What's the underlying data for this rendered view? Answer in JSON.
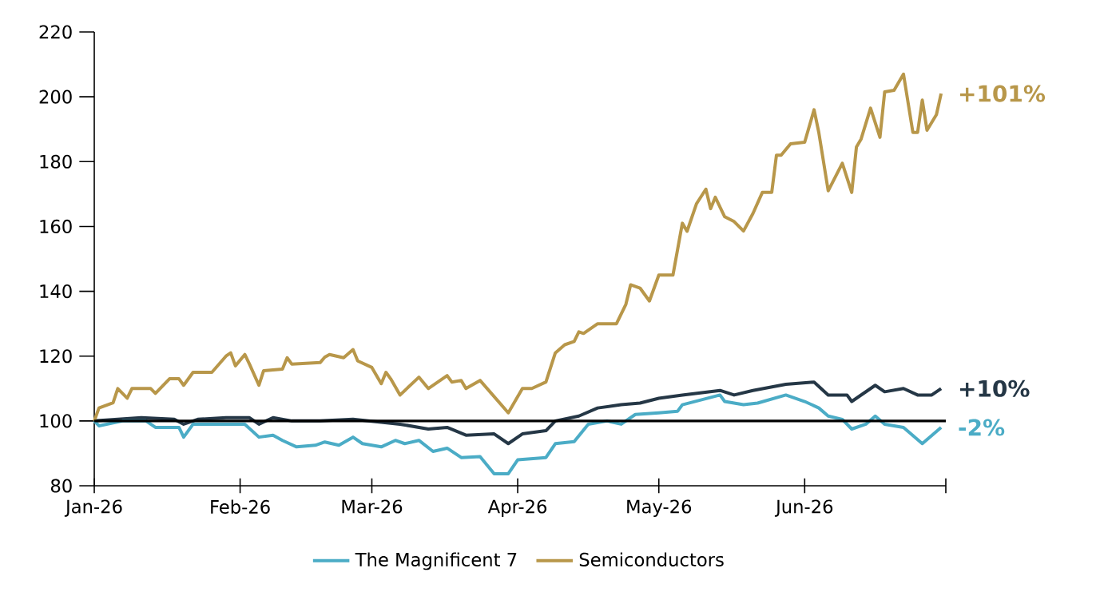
{
  "chart_data": {
    "type": "line",
    "xlim": [
      "2026-01-01",
      "2026-07-01"
    ],
    "xticks": [
      {
        "value": "2026-01-01",
        "label": "Jan-26"
      },
      {
        "value": "2026-02-01",
        "label": "Feb-26"
      },
      {
        "value": "2026-03-01",
        "label": "Mar-26"
      },
      {
        "value": "2026-04-01",
        "label": "Apr-26"
      },
      {
        "value": "2026-05-01",
        "label": "May-26"
      },
      {
        "value": "2026-06-01",
        "label": "Jun-26"
      },
      {
        "value": "2026-07-01",
        "label": null
      }
    ],
    "ylim": [
      80,
      220
    ],
    "yticks": [
      80,
      100,
      120,
      140,
      160,
      180,
      200,
      220
    ],
    "legend": "bottom",
    "ref_lines": [
      {
        "axis": "y",
        "value": 100,
        "color": "#000000"
      }
    ],
    "annotations": [
      {
        "text": "+101%",
        "x": "2026-06-30",
        "y": 201
      },
      {
        "text": "+10%",
        "x": "2026-06-30",
        "y": 110
      },
      {
        "text": "-2%",
        "x": "2026-06-30",
        "y": 98
      }
    ],
    "series": [
      {
        "color": "#253746",
        "x": [
          "2026-01-01",
          "2026-01-06",
          "2026-01-11",
          "2026-01-18",
          "2026-01-20",
          "2026-01-23",
          "2026-01-29",
          "2026-02-03",
          "2026-02-05",
          "2026-02-08",
          "2026-02-12",
          "2026-02-18",
          "2026-02-25",
          "2026-03-07",
          "2026-03-13",
          "2026-03-17",
          "2026-03-21",
          "2026-03-27",
          "2026-03-30",
          "2026-04-02",
          "2026-04-07",
          "2026-04-09",
          "2026-04-14",
          "2026-04-18",
          "2026-04-23",
          "2026-04-27",
          "2026-05-01",
          "2026-05-06",
          "2026-05-14",
          "2026-05-17",
          "2026-05-21",
          "2026-05-28",
          "2026-06-03",
          "2026-06-06",
          "2026-06-10",
          "2026-06-11",
          "2026-06-16",
          "2026-06-18",
          "2026-06-22",
          "2026-06-25",
          "2026-06-28",
          "2026-06-30"
        ],
        "values": [
          100,
          100.5,
          101,
          100.5,
          99,
          100.5,
          101,
          101,
          99,
          101,
          100,
          100,
          100.5,
          99,
          97.5,
          98,
          95.6,
          96,
          93,
          96,
          97,
          100,
          101.5,
          104,
          105,
          105.5,
          107,
          108,
          109.4,
          108,
          109.4,
          111.3,
          112,
          108,
          108,
          106,
          111,
          109,
          110,
          108,
          108,
          110
        ]
      },
      {
        "name": "The Magnificent 7",
        "color": "#4bacc6",
        "x": [
          "2026-01-01",
          "2026-01-02",
          "2026-01-07",
          "2026-01-12",
          "2026-01-14",
          "2026-01-19",
          "2026-01-20",
          "2026-01-22",
          "2026-01-31",
          "2026-02-02",
          "2026-02-05",
          "2026-02-08",
          "2026-02-10",
          "2026-02-13",
          "2026-02-17",
          "2026-02-19",
          "2026-02-22",
          "2026-02-25",
          "2026-02-27",
          "2026-03-03",
          "2026-03-06",
          "2026-03-08",
          "2026-03-11",
          "2026-03-14",
          "2026-03-17",
          "2026-03-20",
          "2026-03-24",
          "2026-03-27",
          "2026-03-30",
          "2026-04-01",
          "2026-04-07",
          "2026-04-09",
          "2026-04-13",
          "2026-04-16",
          "2026-04-20",
          "2026-04-23",
          "2026-04-26",
          "2026-05-01",
          "2026-05-05",
          "2026-05-06",
          "2026-05-14",
          "2026-05-15",
          "2026-05-19",
          "2026-05-22",
          "2026-05-28",
          "2026-06-01",
          "2026-06-04",
          "2026-06-06",
          "2026-06-09",
          "2026-06-11",
          "2026-06-14",
          "2026-06-16",
          "2026-06-18",
          "2026-06-22",
          "2026-06-26",
          "2026-06-30"
        ],
        "values": [
          100,
          98.5,
          100,
          100,
          98,
          98,
          95,
          99,
          99,
          99,
          95,
          95.6,
          94,
          92,
          92.5,
          93.5,
          92.5,
          95,
          93,
          92,
          94,
          93,
          94,
          90.6,
          91.6,
          88.7,
          89,
          83.7,
          83.7,
          88,
          88.7,
          93,
          93.6,
          99,
          100,
          99,
          102,
          102.5,
          103,
          105,
          108,
          106,
          105,
          105.5,
          108,
          106,
          104,
          101.5,
          100.5,
          97.5,
          99,
          101.5,
          99,
          98,
          93,
          98
        ]
      },
      {
        "name": "Semiconductors",
        "color": "#b8974a",
        "x": [
          "2026-01-01",
          "2026-01-02",
          "2026-01-05",
          "2026-01-06",
          "2026-01-08",
          "2026-01-09",
          "2026-01-13",
          "2026-01-14",
          "2026-01-17",
          "2026-01-19",
          "2026-01-20",
          "2026-01-22",
          "2026-01-26",
          "2026-01-29",
          "2026-01-30",
          "2026-01-31",
          "2026-02-02",
          "2026-02-03",
          "2026-02-05",
          "2026-02-06",
          "2026-02-10",
          "2026-02-11",
          "2026-02-12",
          "2026-02-18",
          "2026-02-19",
          "2026-02-20",
          "2026-02-23",
          "2026-02-25",
          "2026-02-26",
          "2026-03-01",
          "2026-03-03",
          "2026-03-04",
          "2026-03-05",
          "2026-03-07",
          "2026-03-11",
          "2026-03-13",
          "2026-03-17",
          "2026-03-18",
          "2026-03-20",
          "2026-03-21",
          "2026-03-24",
          "2026-03-27",
          "2026-03-30",
          "2026-04-02",
          "2026-04-04",
          "2026-04-07",
          "2026-04-09",
          "2026-04-11",
          "2026-04-13",
          "2026-04-14",
          "2026-04-15",
          "2026-04-18",
          "2026-04-22",
          "2026-04-24",
          "2026-04-25",
          "2026-04-27",
          "2026-04-29",
          "2026-05-01",
          "2026-05-04",
          "2026-05-06",
          "2026-05-07",
          "2026-05-09",
          "2026-05-11",
          "2026-05-12",
          "2026-05-13",
          "2026-05-15",
          "2026-05-17",
          "2026-05-19",
          "2026-05-21",
          "2026-05-23",
          "2026-05-25",
          "2026-05-26",
          "2026-05-27",
          "2026-05-29",
          "2026-06-01",
          "2026-06-03",
          "2026-06-04",
          "2026-06-06",
          "2026-06-09",
          "2026-06-11",
          "2026-06-12",
          "2026-06-13",
          "2026-06-15",
          "2026-06-17",
          "2026-06-18",
          "2026-06-20",
          "2026-06-22",
          "2026-06-24",
          "2026-06-25",
          "2026-06-26",
          "2026-06-27",
          "2026-06-29",
          "2026-06-30"
        ],
        "values": [
          100,
          104,
          105.6,
          110,
          107,
          110,
          110,
          108.5,
          113,
          113,
          111,
          115,
          115,
          120,
          121,
          117,
          120.5,
          117.5,
          111,
          115.5,
          116,
          119.5,
          117.5,
          118,
          119.7,
          120.5,
          119.5,
          122,
          118.5,
          116.5,
          111.5,
          115,
          113,
          108,
          113.5,
          110,
          114,
          112,
          112.5,
          110,
          112.5,
          107.5,
          102.5,
          110,
          110,
          112,
          121,
          123.5,
          124.5,
          127.5,
          127,
          130,
          130,
          136,
          142,
          141,
          137,
          145,
          145,
          161,
          158.5,
          167,
          171.5,
          165.5,
          169,
          163,
          161.5,
          158.6,
          164,
          170.5,
          170.5,
          182,
          182,
          185.5,
          186,
          196,
          189,
          171,
          179.5,
          170.5,
          184.5,
          187,
          196.5,
          187.5,
          201.5,
          202,
          207,
          189,
          189,
          199,
          189.7,
          194.5,
          201
        ]
      }
    ]
  }
}
